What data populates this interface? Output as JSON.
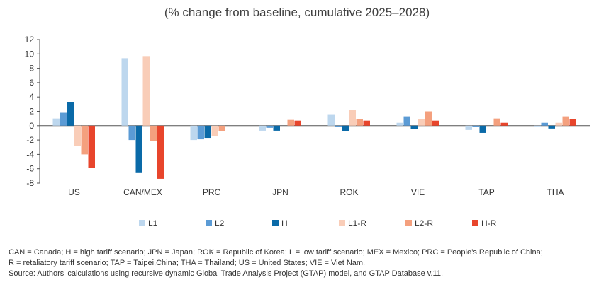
{
  "chart_data": {
    "type": "bar",
    "title": "(% change from baseline, cumulative 2025–2028)",
    "categories": [
      "US",
      "CAN/MEX",
      "PRC",
      "JPN",
      "ROK",
      "VIE",
      "TAP",
      "THA"
    ],
    "ylim": [
      -8,
      12
    ],
    "yticks": [
      12,
      10,
      8,
      6,
      4,
      2,
      0,
      -2,
      -4,
      -6,
      -8
    ],
    "ytick_labels": [
      "12",
      "10",
      "8",
      "6",
      "4",
      "2",
      "0",
      "-2",
      "-4",
      "-6",
      "-8"
    ],
    "grid": false,
    "legend_position": "bottom",
    "series": [
      {
        "name": "L1",
        "color": "#bdd7ee",
        "values": [
          1.0,
          9.4,
          -2.0,
          -0.7,
          1.6,
          0.4,
          -0.6,
          -0.1
        ]
      },
      {
        "name": "L2",
        "color": "#5b9bd5",
        "values": [
          1.8,
          -2.0,
          -1.9,
          -0.3,
          -0.2,
          1.3,
          -0.2,
          0.4
        ]
      },
      {
        "name": "H",
        "color": "#0a6aa8",
        "values": [
          3.3,
          -6.6,
          -1.7,
          -0.7,
          -0.8,
          -0.5,
          -1.0,
          -0.4
        ]
      },
      {
        "name": "L1-R",
        "color": "#f9cdb8",
        "values": [
          -2.8,
          9.7,
          -1.5,
          0.0,
          2.2,
          0.9,
          0.0,
          0.4
        ]
      },
      {
        "name": "L2-R",
        "color": "#f4a07e",
        "values": [
          -4.0,
          -2.1,
          -0.8,
          0.8,
          0.9,
          2.0,
          1.0,
          1.3
        ]
      },
      {
        "name": "H-R",
        "color": "#e8452c",
        "values": [
          -5.9,
          -7.4,
          0.0,
          0.7,
          0.7,
          0.7,
          0.4,
          0.9
        ]
      }
    ]
  },
  "notes": {
    "line1": "CAN = Canada; H = high tariff scenario; JPN = Japan; ROK = Republic of Korea; L = low tariff scenario; MEX = Mexico; PRC = People’s Republic of China;",
    "line2": "R = retaliatory tariff scenario; TAP = Taipei,China; THA = Thailand; US = United States; VIE = Viet Nam.",
    "source": "Source: Authors’ calculations using recursive dynamic Global Trade Analysis Project (GTAP) model, and GTAP Database v.11."
  }
}
